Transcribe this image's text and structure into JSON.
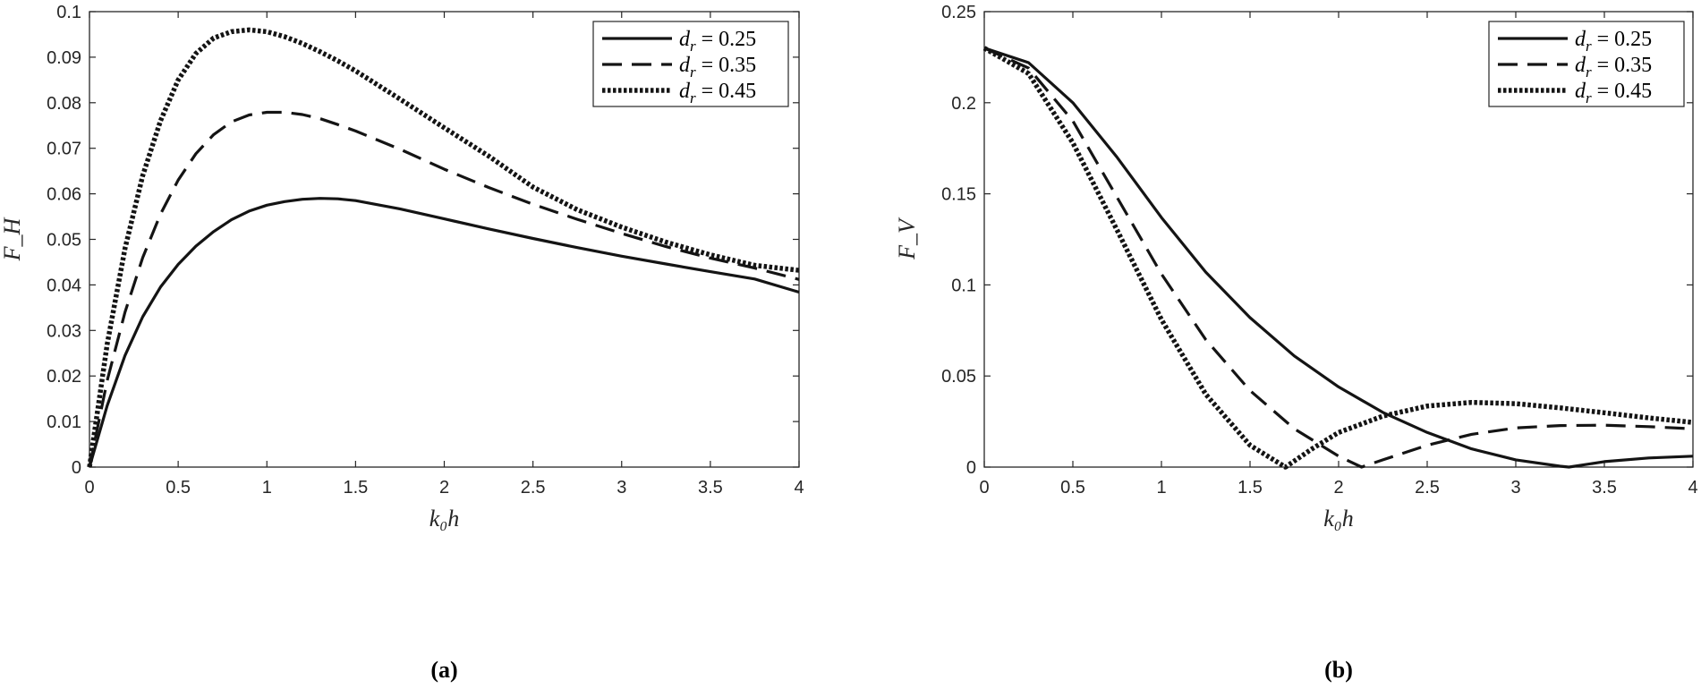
{
  "chart_data": [
    {
      "type": "line",
      "caption": "(a)",
      "xlabel": "k₀h",
      "ylabel": "F_H",
      "xlim": [
        0,
        4
      ],
      "ylim": [
        0,
        0.1
      ],
      "xticks": [
        "0",
        "0.5",
        "1",
        "1.5",
        "2",
        "2.5",
        "3",
        "3.5",
        "4"
      ],
      "yticks": [
        "0",
        "0.01",
        "0.02",
        "0.03",
        "0.04",
        "0.05",
        "0.06",
        "0.07",
        "0.08",
        "0.09",
        "0.1"
      ],
      "legend_position": "top-right",
      "series": [
        {
          "name": "d_r = 0.25",
          "label_var": "d",
          "label_sub": "r",
          "label_rest": " = 0.25",
          "style": "solid",
          "x": [
            0,
            0.1,
            0.2,
            0.3,
            0.4,
            0.5,
            0.6,
            0.7,
            0.8,
            0.9,
            1.0,
            1.1,
            1.2,
            1.3,
            1.4,
            1.5,
            1.75,
            2.0,
            2.25,
            2.5,
            2.75,
            3.0,
            3.25,
            3.5,
            3.75,
            4.0
          ],
          "y": [
            0,
            0.0135,
            0.0245,
            0.033,
            0.0395,
            0.0445,
            0.0485,
            0.0517,
            0.0543,
            0.0562,
            0.0575,
            0.0583,
            0.0588,
            0.059,
            0.0589,
            0.0585,
            0.0567,
            0.0545,
            0.0523,
            0.0502,
            0.0482,
            0.0463,
            0.0446,
            0.0429,
            0.0413,
            0.0384
          ]
        },
        {
          "name": "d_r = 0.35",
          "label_var": "d",
          "label_sub": "r",
          "label_rest": " = 0.35",
          "style": "dashed",
          "x": [
            0,
            0.1,
            0.2,
            0.3,
            0.4,
            0.5,
            0.6,
            0.7,
            0.8,
            0.9,
            1.0,
            1.1,
            1.2,
            1.3,
            1.4,
            1.5,
            1.75,
            2.0,
            2.25,
            2.5,
            2.75,
            3.0,
            3.25,
            3.5,
            3.75,
            4.0
          ],
          "y": [
            0,
            0.019,
            0.034,
            0.046,
            0.0555,
            0.063,
            0.0688,
            0.073,
            0.0758,
            0.0773,
            0.0779,
            0.0779,
            0.0774,
            0.0765,
            0.0752,
            0.0738,
            0.0698,
            0.0654,
            0.0614,
            0.0577,
            0.0544,
            0.0513,
            0.0484,
            0.0459,
            0.0437,
            0.0412
          ]
        },
        {
          "name": "d_r = 0.45",
          "label_var": "d",
          "label_sub": "r",
          "label_rest": " = 0.45",
          "style": "dotted",
          "x": [
            0,
            0.1,
            0.2,
            0.3,
            0.4,
            0.5,
            0.6,
            0.7,
            0.8,
            0.9,
            1.0,
            1.1,
            1.2,
            1.3,
            1.4,
            1.5,
            1.75,
            2.0,
            2.25,
            2.5,
            2.75,
            3.0,
            3.25,
            3.5,
            3.75,
            4.0
          ],
          "y": [
            0,
            0.027,
            0.048,
            0.064,
            0.076,
            0.085,
            0.0908,
            0.0942,
            0.0956,
            0.096,
            0.0956,
            0.0945,
            0.093,
            0.0912,
            0.0892,
            0.087,
            0.0808,
            0.0745,
            0.0683,
            0.0615,
            0.0565,
            0.0527,
            0.0494,
            0.0466,
            0.0443,
            0.0432
          ]
        }
      ]
    },
    {
      "type": "line",
      "caption": "(b)",
      "xlabel": "k₀h",
      "ylabel": "F_V",
      "xlim": [
        0,
        4
      ],
      "ylim": [
        0,
        0.25
      ],
      "xticks": [
        "0",
        "0.5",
        "1",
        "1.5",
        "2",
        "2.5",
        "3",
        "3.5",
        "4"
      ],
      "yticks": [
        "0",
        "0.05",
        "0.1",
        "0.15",
        "0.2",
        "0.25"
      ],
      "legend_position": "top-right",
      "series": [
        {
          "name": "d_r = 0.25",
          "label_var": "d",
          "label_sub": "r",
          "label_rest": " = 0.25",
          "style": "solid",
          "x": [
            0,
            0.25,
            0.5,
            0.75,
            1.0,
            1.25,
            1.5,
            1.75,
            2.0,
            2.25,
            2.5,
            2.75,
            3.0,
            3.25,
            3.3,
            3.5,
            3.75,
            4.0
          ],
          "y": [
            0.23,
            0.222,
            0.2,
            0.17,
            0.137,
            0.107,
            0.082,
            0.061,
            0.044,
            0.03,
            0.019,
            0.01,
            0.004,
            0.0005,
            0,
            0.003,
            0.005,
            0.006
          ]
        },
        {
          "name": "d_r = 0.35",
          "label_var": "d",
          "label_sub": "r",
          "label_rest": " = 0.35",
          "style": "dashed",
          "x": [
            0,
            0.25,
            0.5,
            0.75,
            1.0,
            1.25,
            1.5,
            1.75,
            2.0,
            2.13,
            2.25,
            2.5,
            2.75,
            3.0,
            3.25,
            3.5,
            3.75,
            4.0
          ],
          "y": [
            0.23,
            0.219,
            0.19,
            0.148,
            0.106,
            0.07,
            0.042,
            0.021,
            0.006,
            0,
            0.004,
            0.012,
            0.018,
            0.0215,
            0.0228,
            0.023,
            0.0222,
            0.021
          ]
        },
        {
          "name": "d_r = 0.45",
          "label_var": "d",
          "label_sub": "r",
          "label_rest": " = 0.45",
          "style": "dotted",
          "x": [
            0,
            0.25,
            0.5,
            0.75,
            1.0,
            1.25,
            1.5,
            1.7,
            1.85,
            2.0,
            2.25,
            2.5,
            2.75,
            3.0,
            3.25,
            3.5,
            3.75,
            4.0
          ],
          "y": [
            0.23,
            0.216,
            0.178,
            0.13,
            0.081,
            0.04,
            0.012,
            0,
            0.01,
            0.019,
            0.028,
            0.0335,
            0.0355,
            0.0348,
            0.0325,
            0.0298,
            0.027,
            0.0245
          ]
        }
      ]
    }
  ]
}
